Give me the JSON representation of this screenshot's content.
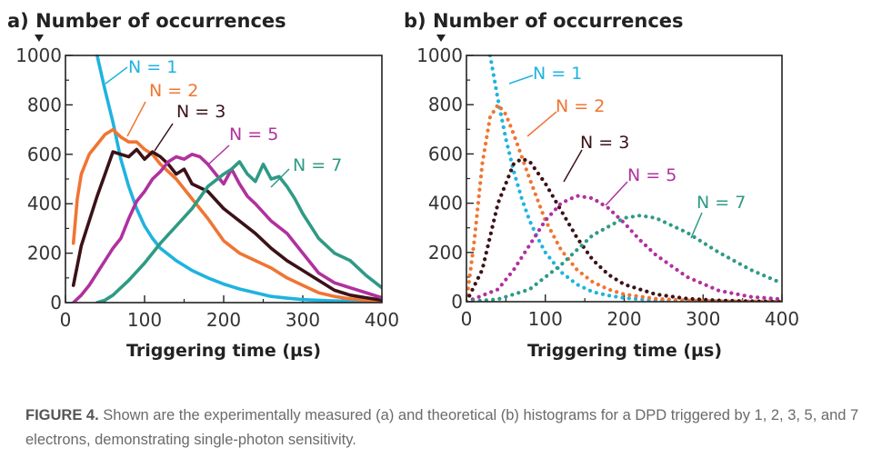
{
  "colors": {
    "N1": "#1fb3e0",
    "N2": "#f07532",
    "N3": "#3b1218",
    "N5": "#b0319e",
    "N7": "#2f9a85"
  },
  "caption": {
    "label": "FIGURE 4.",
    "text": " Shown are the experimentally measured (a) and theoretical (b) histograms for a DPD triggered by 1, 2, 3, 5, and 7 electrons, demonstrating single-photon sensitivity."
  },
  "chart_data": [
    {
      "type": "line",
      "panel": "a",
      "title": "a) Number of occurrences",
      "xlabel": "Triggering time (µs)",
      "ylabel": "Number of occurrences",
      "xlim": [
        0,
        400
      ],
      "ylim": [
        0,
        1000
      ],
      "xticks": [
        "0",
        "100",
        "200",
        "300",
        "400"
      ],
      "yticks": [
        "0",
        "200",
        "400",
        "600",
        "800",
        "1000"
      ],
      "grid": false,
      "line_style": "solid",
      "series": [
        {
          "name": "N = 1",
          "color_key": "N1",
          "x": [
            40,
            50,
            60,
            70,
            80,
            90,
            100,
            110,
            120,
            140,
            160,
            180,
            200,
            220,
            240,
            260,
            280,
            300,
            330,
            360,
            400
          ],
          "y": [
            1000,
            860,
            730,
            580,
            470,
            380,
            310,
            260,
            220,
            170,
            130,
            100,
            75,
            55,
            40,
            25,
            18,
            12,
            8,
            5,
            2
          ]
        },
        {
          "name": "N = 2",
          "color_key": "N2",
          "x": [
            10,
            15,
            20,
            30,
            40,
            50,
            60,
            70,
            80,
            90,
            100,
            110,
            120,
            140,
            160,
            180,
            200,
            220,
            240,
            260,
            280,
            300,
            320,
            340,
            360,
            380,
            400
          ],
          "y": [
            240,
            420,
            520,
            600,
            640,
            680,
            700,
            670,
            650,
            650,
            620,
            600,
            560,
            500,
            420,
            340,
            250,
            200,
            170,
            140,
            100,
            70,
            40,
            25,
            15,
            10,
            5
          ]
        },
        {
          "name": "N = 3",
          "color_key": "N3",
          "x": [
            10,
            20,
            30,
            40,
            50,
            60,
            70,
            80,
            90,
            100,
            110,
            120,
            130,
            140,
            150,
            160,
            180,
            200,
            220,
            240,
            260,
            280,
            300,
            320,
            340,
            360,
            380,
            400
          ],
          "y": [
            70,
            230,
            330,
            430,
            520,
            610,
            600,
            590,
            620,
            580,
            610,
            590,
            560,
            520,
            540,
            480,
            450,
            380,
            330,
            280,
            220,
            170,
            130,
            90,
            50,
            30,
            20,
            10
          ]
        },
        {
          "name": "N = 5",
          "color_key": "N5",
          "x": [
            10,
            20,
            30,
            40,
            50,
            60,
            70,
            80,
            90,
            100,
            110,
            120,
            130,
            140,
            150,
            160,
            170,
            180,
            190,
            200,
            210,
            220,
            230,
            240,
            260,
            280,
            300,
            320,
            340,
            360,
            380,
            400
          ],
          "y": [
            0,
            30,
            70,
            120,
            170,
            220,
            260,
            340,
            410,
            450,
            500,
            530,
            570,
            590,
            580,
            600,
            590,
            560,
            520,
            480,
            540,
            480,
            430,
            400,
            330,
            280,
            200,
            120,
            80,
            60,
            40,
            20
          ]
        },
        {
          "name": "N = 7",
          "color_key": "N7",
          "x": [
            40,
            50,
            60,
            80,
            100,
            120,
            140,
            160,
            180,
            200,
            210,
            220,
            230,
            240,
            250,
            260,
            270,
            280,
            290,
            300,
            320,
            340,
            360,
            380,
            400
          ],
          "y": [
            0,
            10,
            30,
            90,
            160,
            240,
            310,
            380,
            470,
            520,
            540,
            570,
            520,
            490,
            560,
            500,
            510,
            470,
            420,
            360,
            260,
            200,
            170,
            110,
            60
          ]
        }
      ]
    },
    {
      "type": "line",
      "panel": "b",
      "title": "b) Number of occurrences",
      "xlabel": "Triggering time (µs)",
      "ylabel": "Number of occurrences",
      "xlim": [
        0,
        400
      ],
      "ylim": [
        0,
        1000
      ],
      "xticks": [
        "0",
        "100",
        "200",
        "300",
        "400"
      ],
      "yticks": [
        "0",
        "200",
        "400",
        "600",
        "800",
        "1000"
      ],
      "grid": false,
      "line_style": "dotted",
      "series": [
        {
          "name": "N = 1",
          "color_key": "N1",
          "x": [
            30,
            40,
            50,
            60,
            70,
            80,
            90,
            100,
            120,
            140,
            160,
            180,
            200,
            240,
            300,
            400
          ],
          "y": [
            1000,
            820,
            660,
            530,
            420,
            330,
            260,
            200,
            120,
            70,
            40,
            25,
            15,
            5,
            2,
            0
          ]
        },
        {
          "name": "N = 2",
          "color_key": "N2",
          "x": [
            0,
            10,
            20,
            30,
            40,
            50,
            60,
            80,
            100,
            120,
            140,
            160,
            180,
            200,
            240,
            280,
            320,
            360,
            400
          ],
          "y": [
            0,
            250,
            560,
            750,
            800,
            760,
            680,
            500,
            330,
            210,
            130,
            80,
            50,
            30,
            12,
            5,
            2,
            1,
            0
          ]
        },
        {
          "name": "N = 3",
          "color_key": "N3",
          "x": [
            0,
            20,
            40,
            60,
            70,
            80,
            100,
            120,
            140,
            160,
            180,
            200,
            240,
            280,
            320,
            360,
            400
          ],
          "y": [
            0,
            130,
            400,
            560,
            580,
            570,
            480,
            370,
            260,
            170,
            110,
            70,
            30,
            12,
            5,
            2,
            0
          ]
        },
        {
          "name": "N = 5",
          "color_key": "N5",
          "x": [
            0,
            40,
            60,
            80,
            100,
            120,
            140,
            160,
            180,
            200,
            220,
            240,
            280,
            320,
            360,
            400
          ],
          "y": [
            0,
            50,
            130,
            230,
            330,
            400,
            430,
            420,
            380,
            320,
            250,
            190,
            100,
            45,
            20,
            10
          ]
        },
        {
          "name": "N = 7",
          "color_key": "N7",
          "x": [
            0,
            40,
            80,
            120,
            160,
            200,
            220,
            240,
            280,
            320,
            360,
            400
          ],
          "y": [
            0,
            10,
            50,
            150,
            270,
            340,
            350,
            340,
            280,
            200,
            130,
            75
          ]
        }
      ]
    }
  ]
}
